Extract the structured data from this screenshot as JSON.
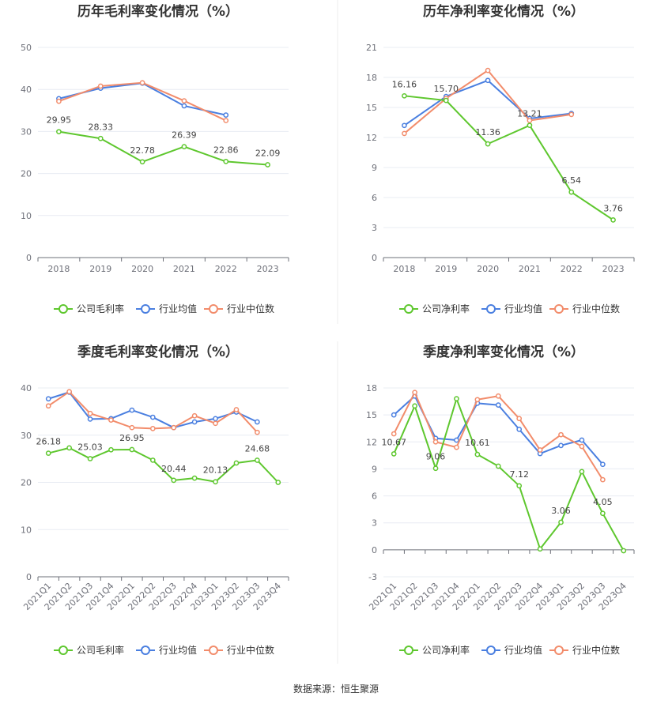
{
  "source": "数据来源：恒生聚源",
  "legend_colors": {
    "company": "#5ec72e",
    "avg": "#4a7fe0",
    "median": "#f28c6b"
  },
  "chart_data": [
    {
      "id": "annual-gross",
      "type": "line",
      "title": "历年毛利率变化情况（%）",
      "categories": [
        "2018",
        "2019",
        "2020",
        "2021",
        "2022",
        "2023"
      ],
      "ylim": [
        0,
        50
      ],
      "yticks": [
        0,
        10,
        20,
        30,
        40,
        50
      ],
      "legend_position": "bottom",
      "grid": true,
      "series": [
        {
          "name": "公司毛利率",
          "color": "#5ec72e",
          "labels": true,
          "values": [
            29.95,
            28.33,
            22.78,
            26.39,
            22.86,
            22.09
          ],
          "labels_text": [
            "29.95",
            "28.33",
            "22.78",
            "26.39",
            "22.86",
            "22.09"
          ]
        },
        {
          "name": "行业均值",
          "color": "#4a7fe0",
          "labels": false,
          "values": [
            37.8,
            40.3,
            41.5,
            36.1,
            33.9,
            null
          ]
        },
        {
          "name": "行业中位数",
          "color": "#f28c6b",
          "labels": false,
          "values": [
            37.2,
            40.8,
            41.6,
            37.3,
            32.6,
            null
          ]
        }
      ]
    },
    {
      "id": "annual-net",
      "type": "line",
      "title": "历年净利率变化情况（%）",
      "categories": [
        "2018",
        "2019",
        "2020",
        "2021",
        "2022",
        "2023"
      ],
      "ylim": [
        0,
        21
      ],
      "yticks": [
        0,
        3,
        6,
        9,
        12,
        15,
        18,
        21
      ],
      "legend_position": "bottom",
      "grid": true,
      "series": [
        {
          "name": "公司净利率",
          "color": "#5ec72e",
          "labels": true,
          "values": [
            16.16,
            15.7,
            11.36,
            13.21,
            6.54,
            3.76
          ],
          "labels_text": [
            "16.16",
            "15.70",
            "11.36",
            "13.21",
            "6.54",
            "3.76"
          ]
        },
        {
          "name": "行业均值",
          "color": "#4a7fe0",
          "labels": false,
          "values": [
            13.2,
            16.1,
            17.7,
            13.9,
            14.4,
            null
          ]
        },
        {
          "name": "行业中位数",
          "color": "#f28c6b",
          "labels": false,
          "values": [
            12.4,
            15.9,
            18.7,
            13.7,
            14.3,
            null
          ]
        }
      ]
    },
    {
      "id": "quarter-gross",
      "type": "line",
      "title": "季度毛利率变化情况（%）",
      "categories": [
        "2021Q1",
        "2021Q2",
        "2021Q3",
        "2021Q4",
        "2022Q1",
        "2022Q2",
        "2022Q3",
        "2022Q4",
        "2023Q1",
        "2023Q2",
        "2023Q3",
        "2023Q4"
      ],
      "ylim": [
        0,
        40
      ],
      "yticks": [
        0,
        10,
        20,
        30,
        40
      ],
      "legend_position": "bottom",
      "grid": true,
      "series": [
        {
          "name": "公司毛利率",
          "color": "#5ec72e",
          "labels": true,
          "values": [
            26.18,
            27.3,
            25.03,
            26.9,
            26.95,
            24.7,
            20.44,
            20.9,
            20.13,
            24.1,
            24.68,
            20.0
          ],
          "labels_text": [
            "26.18",
            "",
            "25.03",
            "",
            "26.95",
            "",
            "20.44",
            "",
            "20.13",
            "",
            "24.68",
            ""
          ]
        },
        {
          "name": "行业均值",
          "color": "#4a7fe0",
          "labels": false,
          "values": [
            37.7,
            39.1,
            33.4,
            33.5,
            35.3,
            33.8,
            31.6,
            32.8,
            33.5,
            34.9,
            32.8,
            null
          ]
        },
        {
          "name": "行业中位数",
          "color": "#f28c6b",
          "labels": false,
          "values": [
            36.2,
            39.2,
            34.6,
            33.2,
            31.6,
            31.4,
            31.6,
            34.1,
            32.5,
            35.4,
            30.6,
            null
          ]
        }
      ]
    },
    {
      "id": "quarter-net",
      "type": "line",
      "title": "季度净利率变化情况（%）",
      "categories": [
        "2021Q1",
        "2021Q2",
        "2021Q3",
        "2021Q4",
        "2022Q1",
        "2022Q2",
        "2022Q3",
        "2022Q4",
        "2023Q1",
        "2023Q2",
        "2023Q3",
        "2023Q4"
      ],
      "ylim": [
        -3,
        18
      ],
      "yticks": [
        -3,
        0,
        3,
        6,
        9,
        12,
        15,
        18
      ],
      "legend_position": "bottom",
      "grid": true,
      "series": [
        {
          "name": "公司净利率",
          "color": "#5ec72e",
          "labels": true,
          "values": [
            10.67,
            16.0,
            9.06,
            16.8,
            10.61,
            9.3,
            7.12,
            0.1,
            3.06,
            8.7,
            4.05,
            -0.1
          ],
          "labels_text": [
            "10.67",
            "",
            "9.06",
            "",
            "10.61",
            "",
            "7.12",
            "",
            "3.06",
            "",
            "4.05",
            ""
          ]
        },
        {
          "name": "行业均值",
          "color": "#4a7fe0",
          "labels": false,
          "values": [
            15.0,
            17.1,
            12.4,
            12.2,
            16.3,
            16.1,
            13.4,
            10.7,
            11.6,
            12.2,
            9.5,
            null
          ]
        },
        {
          "name": "行业中位数",
          "color": "#f28c6b",
          "labels": false,
          "values": [
            12.9,
            17.5,
            12.0,
            11.4,
            16.7,
            17.1,
            14.6,
            11.1,
            12.8,
            11.5,
            7.8,
            null
          ]
        }
      ]
    }
  ]
}
